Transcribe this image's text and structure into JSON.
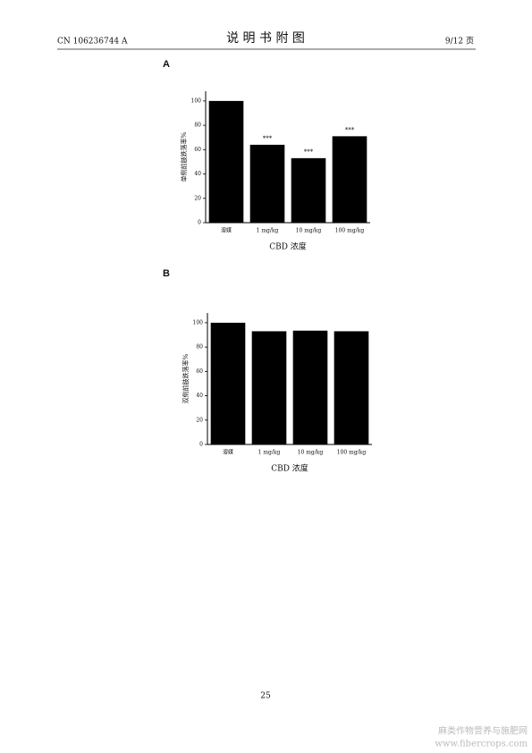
{
  "header": {
    "number": "CN 106236744 A",
    "title": "说 明 书 附 图",
    "page": "9/12 页"
  },
  "footer": {
    "page": "25"
  },
  "watermark": {
    "site": "麻类作物营养与施肥网",
    "url": "www.fibercrops.com"
  },
  "chart_data": [
    {
      "type": "bar",
      "panel": "A",
      "y_label": "单侧前肢跌落率%",
      "x_label": "CBD 浓度",
      "categories": [
        "溶媒",
        "1 mg/kg",
        "10 mg/kg",
        "100 mg/kg"
      ],
      "values": [
        100,
        64,
        53,
        71
      ],
      "annotations": [
        null,
        "***",
        "***",
        "***"
      ],
      "color": "#000000",
      "ylim": [
        0,
        108
      ],
      "yticks": [
        0,
        20,
        40,
        60,
        80,
        100
      ]
    },
    {
      "type": "bar",
      "panel": "B",
      "y_label": "双侧前肢跌落率%",
      "x_label": "CBD 浓度",
      "categories": [
        "溶媒",
        "1 mg/kg",
        "10 mg/kg",
        "100 mg/kg"
      ],
      "values": [
        100,
        93,
        93.5,
        93
      ],
      "annotations": [
        null,
        null,
        null,
        null
      ],
      "color": "#000000",
      "ylim": [
        0,
        108
      ],
      "yticks": [
        0,
        20,
        40,
        60,
        80,
        100
      ]
    }
  ]
}
